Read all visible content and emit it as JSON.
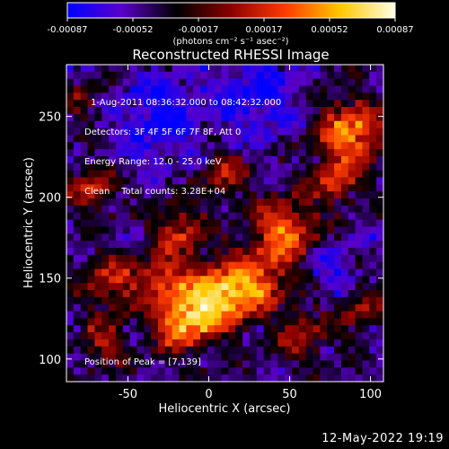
{
  "chart_data": {
    "type": "heatmap",
    "title": "Reconstructed RHESSI Image",
    "xlabel": "Heliocentric X (arcsec)",
    "ylabel": "Heliocentric Y (arcsec)",
    "xlim": [
      -88,
      108
    ],
    "ylim": [
      86,
      282
    ],
    "x_ticks": [
      -50,
      0,
      50,
      100
    ],
    "y_ticks": [
      100,
      150,
      200,
      250
    ],
    "colorbar": {
      "range": [
        -0.00087,
        0.00087
      ],
      "ticks": [
        "-0.00087",
        "-0.00052",
        "-0.00017",
        "0.00017",
        "0.00052",
        "0.00087"
      ],
      "unit_label": "(photons cm⁻² s⁻¹ asec⁻²)",
      "colormap": [
        "#0000ff",
        "#5a00c8",
        "#000000",
        "#8c0000",
        "#ff3c00",
        "#ffc800",
        "#ffffe6"
      ]
    },
    "annotations": [
      "1-Aug-2011 08:36:32.000 to 08:42:32.000",
      "Detectors: 3F 4F 5F 6F 7F 8F, Att 0",
      "Energy Range: 12.0 - 25.0 keV",
      "Clean    Total counts: 3.28E+04"
    ],
    "peak_label": "Position of Peak = [7,139]",
    "peak": [
      7,
      139
    ],
    "sources": [
      {
        "x": 7,
        "y": 139,
        "amp": 1.0,
        "sigma": 14
      },
      {
        "x": -17,
        "y": 123,
        "amp": 0.85,
        "sigma": 12
      },
      {
        "x": -28,
        "y": 150,
        "amp": 0.55,
        "sigma": 11
      },
      {
        "x": 47,
        "y": 178,
        "amp": 0.75,
        "sigma": 14
      },
      {
        "x": 32,
        "y": 147,
        "amp": 0.55,
        "sigma": 12
      },
      {
        "x": -60,
        "y": 148,
        "amp": 0.5,
        "sigma": 12
      },
      {
        "x": -18,
        "y": 180,
        "amp": 0.5,
        "sigma": 11
      },
      {
        "x": 88,
        "y": 240,
        "amp": 0.8,
        "sigma": 14
      },
      {
        "x": 78,
        "y": 210,
        "amp": 0.55,
        "sigma": 10
      },
      {
        "x": -72,
        "y": 205,
        "amp": 0.5,
        "sigma": 10
      },
      {
        "x": 10,
        "y": 215,
        "amp": 0.45,
        "sigma": 10
      },
      {
        "x": 58,
        "y": 115,
        "amp": 0.45,
        "sigma": 11
      },
      {
        "x": -65,
        "y": 110,
        "amp": 0.4,
        "sigma": 10
      },
      {
        "x": 95,
        "y": 130,
        "amp": 0.35,
        "sigma": 10
      },
      {
        "x": -30,
        "y": 250,
        "amp": -0.4,
        "sigma": 18
      },
      {
        "x": 30,
        "y": 262,
        "amp": -0.35,
        "sigma": 18
      },
      {
        "x": -78,
        "y": 260,
        "amp": 0.3,
        "sigma": 9
      },
      {
        "x": 75,
        "y": 160,
        "amp": -0.25,
        "sigma": 12
      }
    ]
  },
  "footer": {
    "timestamp": "12-May-2022 19:19"
  }
}
